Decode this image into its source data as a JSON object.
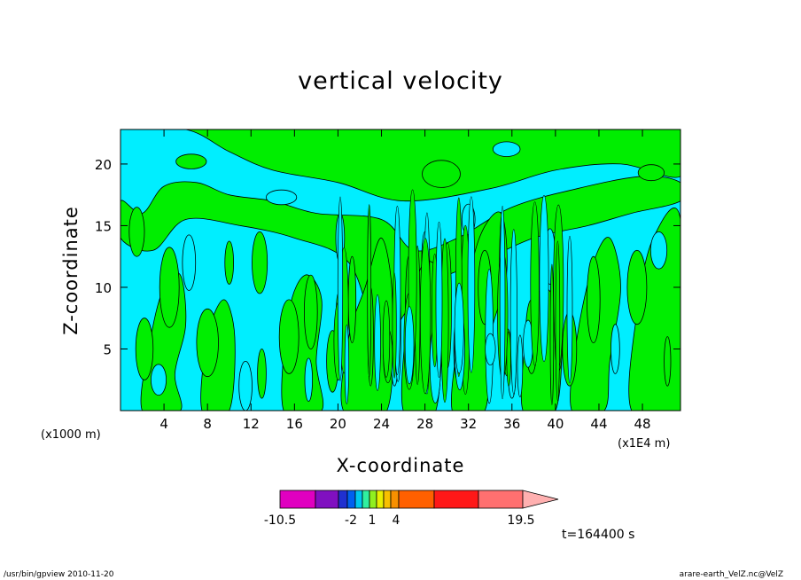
{
  "figure": {
    "footer_left": "/usr/bin/gpview   2010-11-20",
    "footer_right": "arare-earth_VelZ.nc@VelZ",
    "time_label": "t=164400 s"
  },
  "chart_data": {
    "type": "heatmap",
    "title": "vertical velocity",
    "xlabel": "X-coordinate",
    "ylabel": "Z-coordinate",
    "x_unit_label": "(x1000 m)",
    "x_scale_label": "(x1E4 m)",
    "xlim": [
      0,
      51.5
    ],
    "ylim": [
      0,
      22.8
    ],
    "x_ticks": [
      4,
      8,
      12,
      16,
      20,
      24,
      28,
      32,
      36,
      40,
      44,
      48
    ],
    "y_ticks": [
      5,
      10,
      15,
      20
    ],
    "colorbar": {
      "levels": [
        -10.5,
        -2,
        1,
        4,
        19.5
      ],
      "tick_labels": [
        "-10.5",
        "-2",
        "1",
        "4",
        "19.5"
      ],
      "colors": [
        "#e000c0",
        "#8010c0",
        "#2030d0",
        "#0060f0",
        "#00c8f0",
        "#30f0a0",
        "#90f020",
        "#e8f000",
        "#f8c000",
        "#f89000",
        "#ff6000",
        "#ff1818",
        "#ff7070",
        "#ffb0b0"
      ],
      "overflow_high": true
    },
    "field_colors": {
      "negative": "#00eeff",
      "positive": "#00ee00",
      "contour": "#000000"
    },
    "regions": [
      {
        "sign": "positive",
        "x": 1.5,
        "z": 14.5,
        "w": 1.4,
        "h": 4
      },
      {
        "sign": "positive",
        "x": 4.5,
        "z": 10,
        "w": 1.8,
        "h": 6.5
      },
      {
        "sign": "positive",
        "x": 2.2,
        "z": 5,
        "w": 1.6,
        "h": 5
      },
      {
        "sign": "positive",
        "x": 10,
        "z": 12,
        "w": 0.8,
        "h": 3.5
      },
      {
        "sign": "positive",
        "x": 8,
        "z": 5.5,
        "w": 2,
        "h": 5.5
      },
      {
        "sign": "positive",
        "x": 13,
        "z": 3,
        "w": 0.8,
        "h": 4
      },
      {
        "sign": "positive",
        "x": 12.8,
        "z": 12,
        "w": 1.4,
        "h": 5
      },
      {
        "sign": "positive",
        "x": 15.5,
        "z": 6,
        "w": 1.8,
        "h": 6
      },
      {
        "sign": "positive",
        "x": 17.5,
        "z": 8,
        "w": 1.2,
        "h": 6
      },
      {
        "sign": "positive",
        "x": 19.5,
        "z": 4,
        "w": 1.1,
        "h": 5
      },
      {
        "sign": "positive",
        "x": 21.3,
        "z": 9,
        "w": 0.7,
        "h": 7
      },
      {
        "sign": "positive",
        "x": 23,
        "z": 6,
        "w": 0.5,
        "h": 8
      },
      {
        "sign": "positive",
        "x": 26.5,
        "z": 8,
        "w": 0.6,
        "h": 9
      },
      {
        "sign": "positive",
        "x": 29.3,
        "z": 7,
        "w": 0.7,
        "h": 8
      },
      {
        "sign": "positive",
        "x": 33.5,
        "z": 10,
        "w": 1.2,
        "h": 6
      },
      {
        "sign": "positive",
        "x": 37.8,
        "z": 6,
        "w": 1.1,
        "h": 6
      },
      {
        "sign": "positive",
        "x": 41.3,
        "z": 5,
        "w": 1.3,
        "h": 6
      },
      {
        "sign": "positive",
        "x": 43.5,
        "z": 9,
        "w": 1.2,
        "h": 7
      },
      {
        "sign": "positive",
        "x": 47.5,
        "z": 10,
        "w": 1.8,
        "h": 6
      },
      {
        "sign": "positive",
        "x": 50.3,
        "z": 4,
        "w": 0.6,
        "h": 4
      },
      {
        "sign": "positive",
        "x": 48.8,
        "z": 19.3,
        "w": 2.4,
        "h": 1.3
      },
      {
        "sign": "positive",
        "x": 29.5,
        "z": 19.2,
        "w": 3.5,
        "h": 2.2
      },
      {
        "sign": "positive",
        "x": 6.5,
        "z": 20.2,
        "w": 2.8,
        "h": 1.2
      },
      {
        "sign": "negative",
        "x": 3.5,
        "z": 2.5,
        "w": 1.4,
        "h": 2.5
      },
      {
        "sign": "negative",
        "x": 6.3,
        "z": 12,
        "w": 1.2,
        "h": 4.5
      },
      {
        "sign": "negative",
        "x": 11.5,
        "z": 2,
        "w": 1.2,
        "h": 4
      },
      {
        "sign": "negative",
        "x": 14.8,
        "z": 17.3,
        "w": 2.8,
        "h": 1.2
      },
      {
        "sign": "negative",
        "x": 17.3,
        "z": 2.5,
        "w": 0.7,
        "h": 3.5
      },
      {
        "sign": "negative",
        "x": 20.2,
        "z": 14,
        "w": 0.8,
        "h": 4
      },
      {
        "sign": "negative",
        "x": 25.2,
        "z": 4,
        "w": 0.6,
        "h": 4
      },
      {
        "sign": "negative",
        "x": 28,
        "z": 12,
        "w": 0.6,
        "h": 5
      },
      {
        "sign": "negative",
        "x": 31,
        "z": 5,
        "w": 0.7,
        "h": 5
      },
      {
        "sign": "negative",
        "x": 32,
        "z": 15.5,
        "w": 1.2,
        "h": 2.5
      },
      {
        "sign": "negative",
        "x": 36,
        "z": 3,
        "w": 0.7,
        "h": 4
      },
      {
        "sign": "negative",
        "x": 39.5,
        "z": 12.5,
        "w": 1,
        "h": 4.5
      },
      {
        "sign": "negative",
        "x": 45.5,
        "z": 5,
        "w": 0.8,
        "h": 4
      },
      {
        "sign": "negative",
        "x": 49.5,
        "z": 13,
        "w": 1.5,
        "h": 3
      },
      {
        "sign": "negative",
        "x": 35.5,
        "z": 21.2,
        "w": 2.5,
        "h": 1.2
      }
    ]
  }
}
